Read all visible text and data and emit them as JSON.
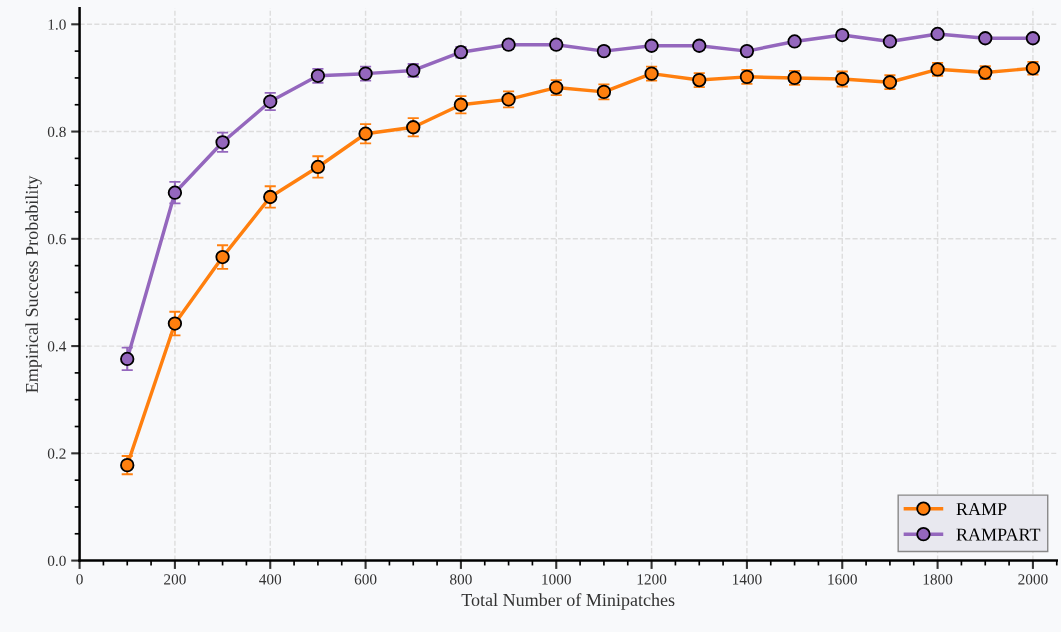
{
  "chart_data": {
    "type": "line",
    "xlabel": "Total Number of Minipatches",
    "ylabel": "Empirical Success Probability",
    "x": [
      100,
      200,
      300,
      400,
      500,
      600,
      700,
      800,
      900,
      1000,
      1100,
      1200,
      1300,
      1400,
      1500,
      1600,
      1700,
      1800,
      1900,
      2000
    ],
    "series": [
      {
        "name": "RAMP",
        "color": "#ff7f0e",
        "values": [
          0.178,
          0.442,
          0.566,
          0.678,
          0.734,
          0.796,
          0.808,
          0.85,
          0.86,
          0.882,
          0.874,
          0.908,
          0.896,
          0.902,
          0.9,
          0.898,
          0.892,
          0.916,
          0.91,
          0.918
        ],
        "errors": [
          0.017,
          0.022,
          0.022,
          0.02,
          0.02,
          0.018,
          0.017,
          0.016,
          0.015,
          0.014,
          0.014,
          0.013,
          0.013,
          0.013,
          0.013,
          0.014,
          0.013,
          0.012,
          0.012,
          0.012
        ]
      },
      {
        "name": "RAMPART",
        "color": "#9467bd",
        "values": [
          0.376,
          0.686,
          0.78,
          0.856,
          0.904,
          0.908,
          0.914,
          0.948,
          0.962,
          0.962,
          0.95,
          0.96,
          0.96,
          0.95,
          0.968,
          0.98,
          0.968,
          0.982,
          0.974,
          0.974
        ],
        "errors": [
          0.021,
          0.02,
          0.018,
          0.016,
          0.013,
          0.013,
          0.012,
          0.01,
          0.008,
          0.008,
          0.008,
          0.007,
          0.007,
          0.007,
          0.006,
          0.005,
          0.006,
          0.005,
          0.006,
          0.006
        ]
      }
    ],
    "xlim": [
      0,
      2050
    ],
    "xticks": [
      0,
      200,
      400,
      600,
      800,
      1000,
      1200,
      1400,
      1600,
      1800,
      2000
    ],
    "ylim": [
      0,
      1.03
    ],
    "yticks": [
      {
        "value": 0,
        "label": "0.0"
      },
      0.2,
      0.4,
      0.6,
      0.8,
      {
        "value": 1.0,
        "label": "1.0"
      }
    ],
    "grid": true,
    "legend": "bottom right",
    "marker": "circle",
    "line_style": "solid"
  }
}
